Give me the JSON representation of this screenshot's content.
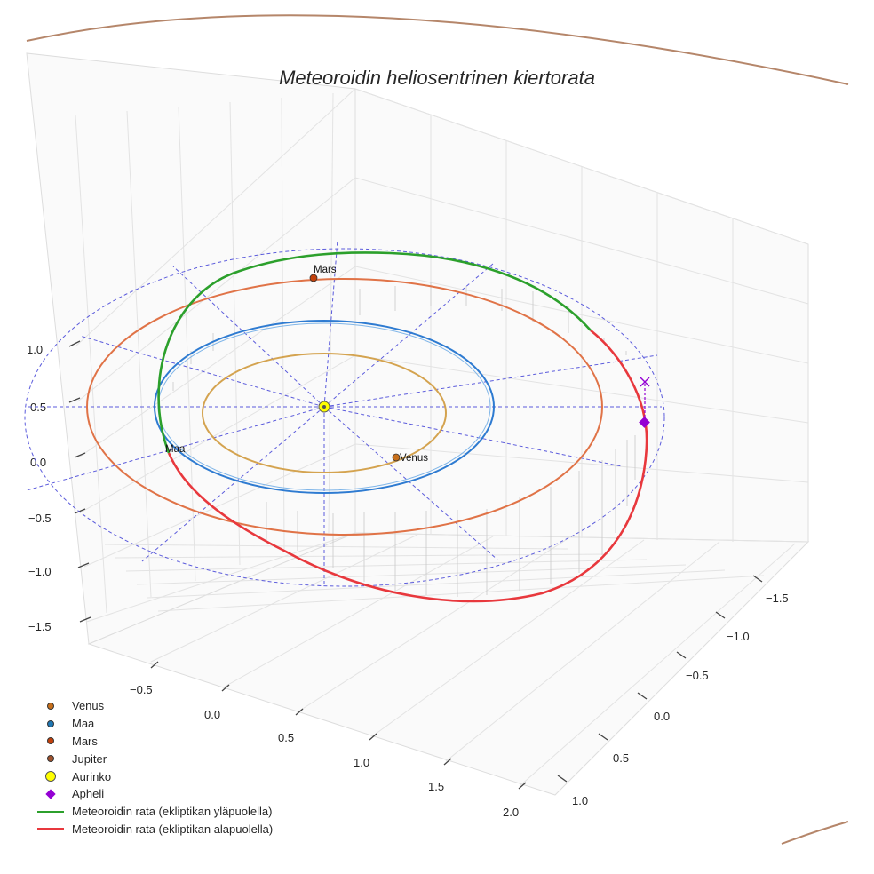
{
  "chart_data": {
    "type": "3d-line",
    "title": "Meteoroidin heliosentrinen kiertorata",
    "axes": {
      "x_ticks": [
        "−0.5",
        "0.0",
        "0.5",
        "1.0",
        "1.5",
        "2.0"
      ],
      "y_ticks": [
        "−1.5",
        "−1.0",
        "−0.5",
        "0.0",
        "0.5",
        "1.0"
      ],
      "z_ticks": [
        "−1.5",
        "−1.0",
        "−0.5",
        "0.0",
        "0.5",
        "1.0"
      ],
      "xlim": [
        -0.8,
        2.2
      ],
      "ylim": [
        -1.7,
        1.2
      ],
      "zlim": [
        -1.7,
        1.2
      ]
    },
    "planets": [
      {
        "name": "Venus",
        "a_au": 0.72,
        "label": "Venus",
        "color": "#d4a34f",
        "marker_color": "#c76f1b"
      },
      {
        "name": "Maa",
        "a_au": 1.0,
        "label": "Maa",
        "color": "#2e7bd1",
        "marker_color": "#1f77b4"
      },
      {
        "name": "Mars",
        "a_au": 1.52,
        "label": "Mars",
        "color": "#e07347",
        "marker_color": "#c2410c"
      },
      {
        "name": "Jupiter",
        "a_au": 5.2,
        "color": "#b07050",
        "marker_color": "#a0522d"
      }
    ],
    "sun": {
      "name": "Aurinko",
      "position": [
        0,
        0,
        0
      ],
      "color": "#ffff00"
    },
    "meteoroid": {
      "perihelion_au": 0.98,
      "aphelion_au": 2.05,
      "above_color": "#2ca02c",
      "below_color": "#e8383d"
    },
    "aphelion_color": "#9400d3"
  },
  "legend": [
    {
      "label": "Venus",
      "kind": "dot",
      "color": "#c76f1b"
    },
    {
      "label": "Maa",
      "kind": "dot",
      "color": "#1f77b4"
    },
    {
      "label": "Mars",
      "kind": "dot",
      "color": "#c2410c"
    },
    {
      "label": "Jupiter",
      "kind": "dot",
      "color": "#a0522d"
    },
    {
      "label": "Aurinko",
      "kind": "sun",
      "color": "#ffff00"
    },
    {
      "label": "Apheli",
      "kind": "diamond",
      "color": "#9400d3"
    },
    {
      "label": "Meteoroidin rata (ekliptikan yläpuolella)",
      "kind": "line",
      "color": "#2ca02c"
    },
    {
      "label": "Meteoroidin rata (ekliptikan alapuolella)",
      "kind": "line",
      "color": "#e8383d"
    }
  ]
}
